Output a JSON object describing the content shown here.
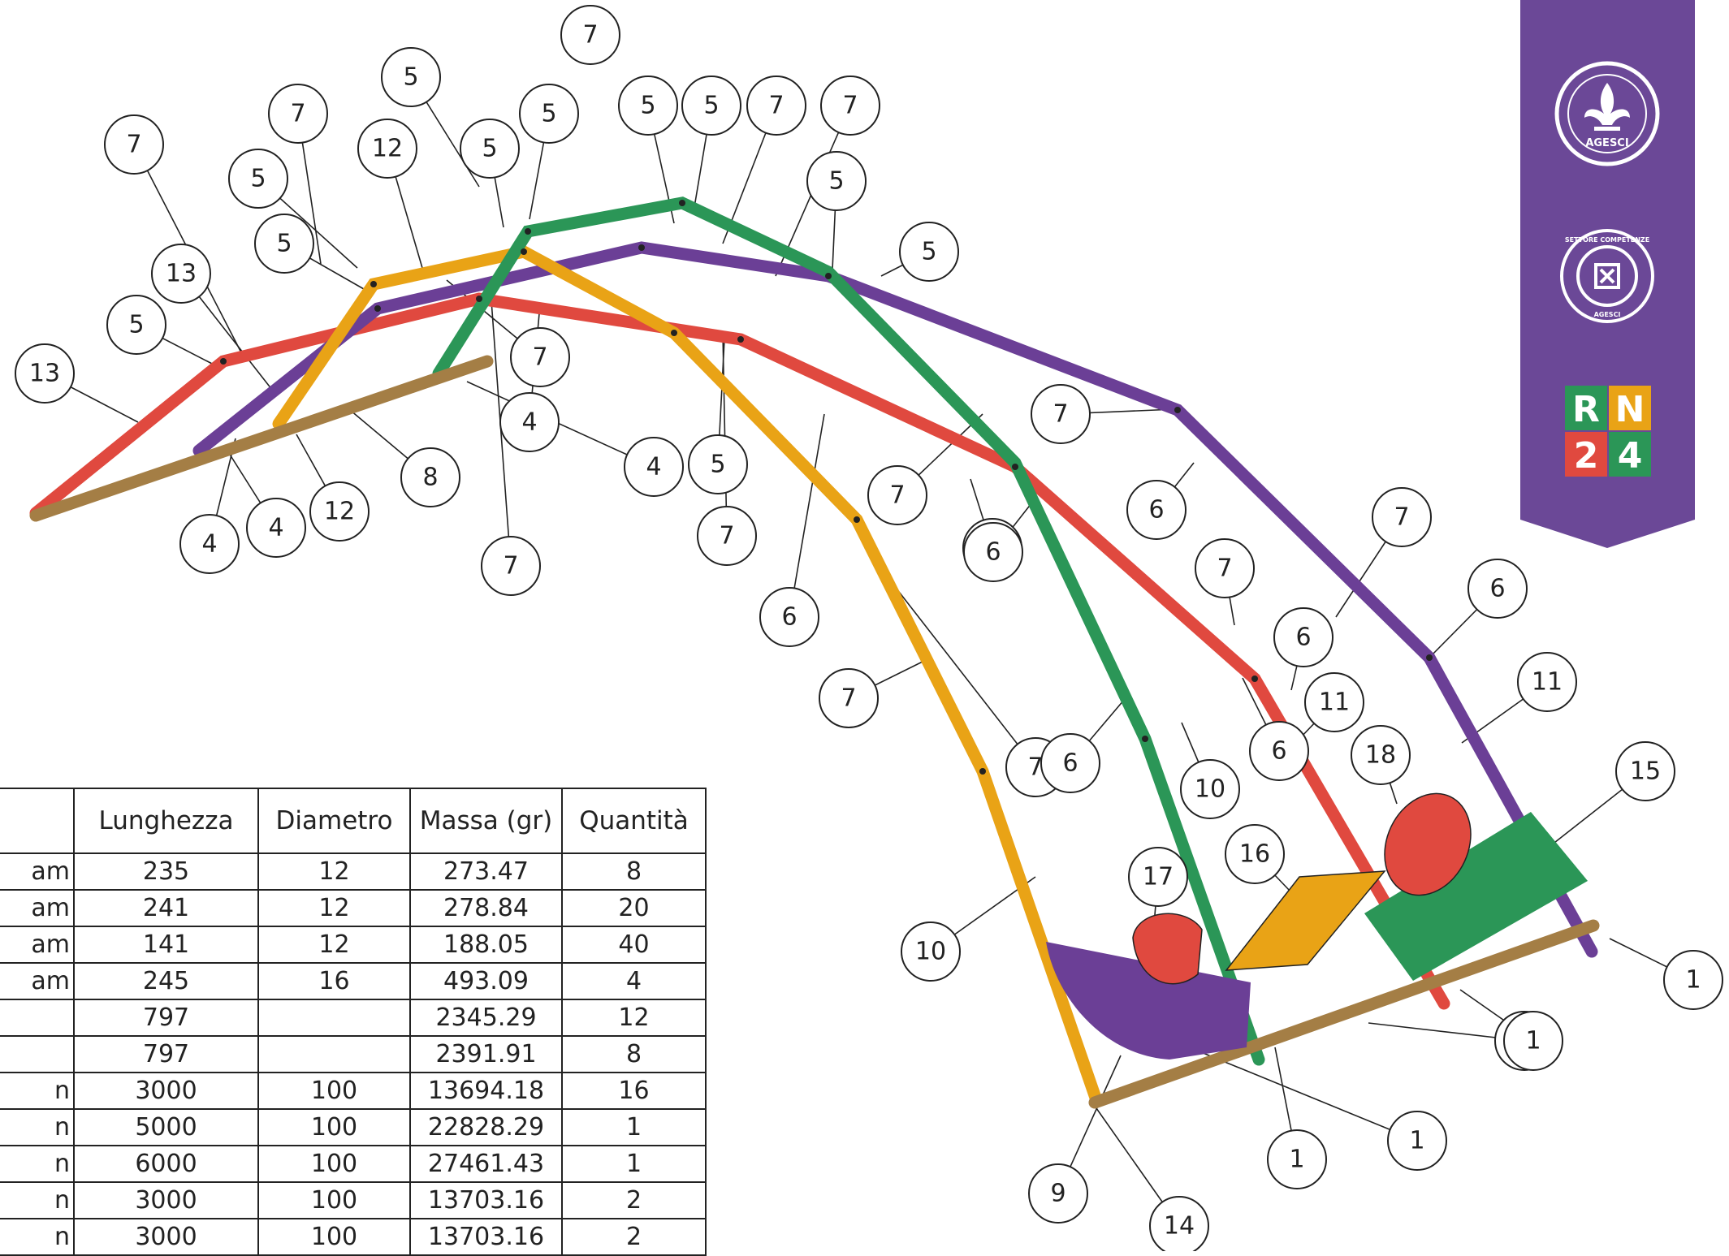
{
  "drawing": {
    "balloons": [
      "7",
      "5",
      "5",
      "7",
      "5",
      "7",
      "12",
      "5",
      "5",
      "5",
      "7",
      "7",
      "5",
      "5",
      "13",
      "5",
      "13",
      "7",
      "4",
      "5",
      "8",
      "4",
      "4",
      "12",
      "4",
      "7",
      "5",
      "7",
      "7",
      "7",
      "6",
      "6",
      "6",
      "7",
      "7",
      "6",
      "6",
      "6",
      "7",
      "7",
      "6",
      "6",
      "10",
      "11",
      "11",
      "18",
      "15",
      "17",
      "16",
      "10",
      "14",
      "1",
      "9",
      "1",
      "1",
      "1",
      "1"
    ],
    "colors": {
      "red": "#e0493f",
      "purple": "#6b3f96",
      "green": "#2b9657",
      "orange": "#e9a316",
      "wood": "#a47e45",
      "banner": "#6b4897"
    }
  },
  "table": {
    "headers": [
      "",
      "Lunghezza",
      "Diametro",
      "Massa (gr)",
      "Quantità"
    ],
    "rows": [
      [
        "am",
        "235",
        "12",
        "273.47",
        "8"
      ],
      [
        "am",
        "241",
        "12",
        "278.84",
        "20"
      ],
      [
        "am",
        "141",
        "12",
        "188.05",
        "40"
      ],
      [
        "am",
        "245",
        "16",
        "493.09",
        "4"
      ],
      [
        "",
        "797",
        "",
        "2345.29",
        "12"
      ],
      [
        "",
        "797",
        "",
        "2391.91",
        "8"
      ],
      [
        "n",
        "3000",
        "100",
        "13694.18",
        "16"
      ],
      [
        "n",
        "5000",
        "100",
        "22828.29",
        "1"
      ],
      [
        "n",
        "6000",
        "100",
        "27461.43",
        "1"
      ],
      [
        "n",
        "3000",
        "100",
        "13703.16",
        "2"
      ],
      [
        "n",
        "3000",
        "100",
        "13703.16",
        "2"
      ]
    ]
  },
  "banner": {
    "logo1_text": "AGESCI",
    "logo2_text_top": "SETTORE COMPETENZE",
    "logo2_text_bottom": "AGESCI",
    "logo3_text": "RN24"
  }
}
